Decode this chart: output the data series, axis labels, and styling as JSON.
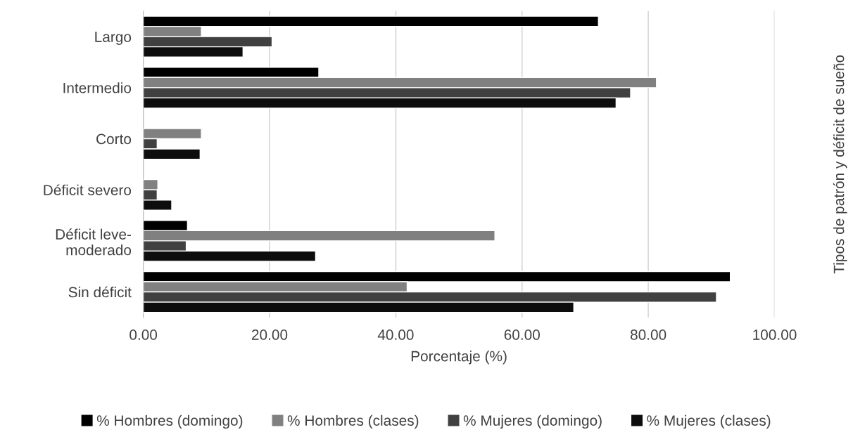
{
  "chart_data": {
    "type": "bar",
    "orientation": "horizontal",
    "categories": [
      "Largo",
      "Intermedio",
      "Corto",
      "Déficit severo",
      "Déficit leve-\nmoderado",
      "Sin déficit"
    ],
    "series": [
      {
        "name": "% Hombres (domingo)",
        "color": "#000000",
        "values": [
          72.1,
          27.8,
          null,
          null,
          7.0,
          93.0
        ]
      },
      {
        "name": "% Hombres (clases)",
        "color": "#808080",
        "values": [
          9.2,
          81.3,
          9.2,
          2.3,
          55.7,
          41.8
        ]
      },
      {
        "name": "% Mujeres (domingo)",
        "color": "#404040",
        "values": [
          20.4,
          77.2,
          2.2,
          2.2,
          6.8,
          90.8
        ]
      },
      {
        "name": "% Mujeres (clases)",
        "color": "#0d0d0d",
        "values": [
          15.8,
          74.9,
          9.0,
          4.5,
          27.3,
          68.2
        ]
      }
    ],
    "xlabel": "Porcentaje (%)",
    "ylabel": "Tipos de patrón y déficit de sueño",
    "xlim": [
      0,
      100
    ],
    "xticks": [
      {
        "value": 0,
        "label": "0.00"
      },
      {
        "value": 20,
        "label": "20.00"
      },
      {
        "value": 40,
        "label": "40.00"
      },
      {
        "value": 60,
        "label": "60.00"
      },
      {
        "value": 80,
        "label": "80.00"
      },
      {
        "value": 100,
        "label": "100.00"
      }
    ],
    "grid": "x",
    "legend": "bottom"
  }
}
